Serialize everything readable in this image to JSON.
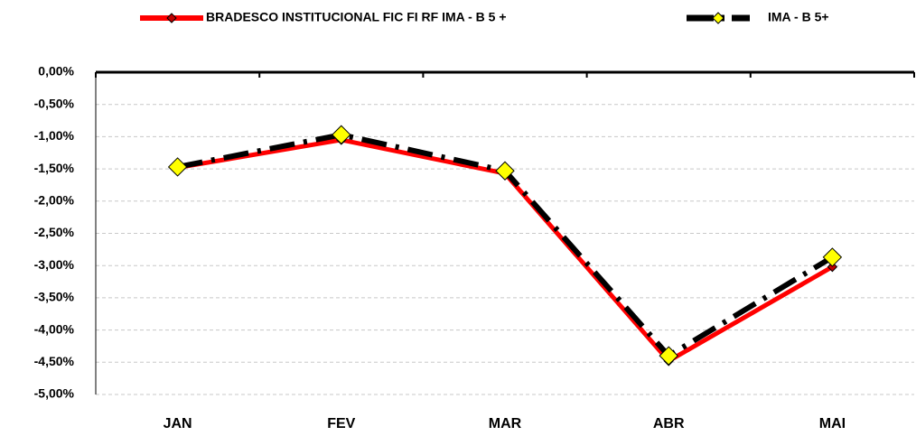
{
  "chart_data": {
    "type": "line",
    "categories": [
      "JAN",
      "FEV",
      "MAR",
      "ABR",
      "MAI"
    ],
    "series": [
      {
        "name": "BRADESCO INSTITUCIONAL FIC FI RF IMA - B 5 +",
        "color": "#ff0000",
        "marker_color": "#c00000",
        "values": [
          -1.48,
          -1.05,
          -1.57,
          -4.48,
          -3.02
        ]
      },
      {
        "name": "IMA - B 5+",
        "color": "#000000",
        "marker_color": "#ffff00",
        "values": [
          -1.47,
          -0.97,
          -1.53,
          -4.4,
          -2.87
        ]
      }
    ],
    "ylim": [
      -5,
      0
    ],
    "yticks": [
      {
        "value": 0,
        "label": "0,00%"
      },
      {
        "value": -0.5,
        "label": "-0,50%"
      },
      {
        "value": -1,
        "label": "-1,00%"
      },
      {
        "value": -1.5,
        "label": "-1,50%"
      },
      {
        "value": -2,
        "label": "-2,00%"
      },
      {
        "value": -2.5,
        "label": "-2,50%"
      },
      {
        "value": -3,
        "label": "-3,00%"
      },
      {
        "value": -3.5,
        "label": "-3,50%"
      },
      {
        "value": -4,
        "label": "-4,00%"
      },
      {
        "value": -4.5,
        "label": "-4,50%"
      },
      {
        "value": -5,
        "label": "-5,00%"
      }
    ],
    "grid": true
  }
}
